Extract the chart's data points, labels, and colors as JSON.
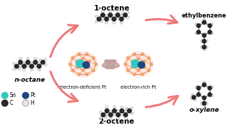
{
  "background_color": "#ffffff",
  "labels": {
    "n_octane": "n-octane",
    "octene1": "1-octene",
    "octene2": "2-octene",
    "ethylbenzene": "ethylbenzene",
    "o_xylene": "o-xylene",
    "electron_deficient": "electron-deficient Pt",
    "electron_rich": "electron-rich Pt"
  },
  "legend": {
    "Sn_color": "#30c8c0",
    "Pt_color": "#204880",
    "C_color": "#282828",
    "H_color": "#e8e8e8",
    "H_edge": "#909090"
  },
  "arrow_color": "#f07878",
  "handshake_color": "#c4a0a0",
  "zeolite_edge": "#e06040",
  "zeolite_node": "#f0a060",
  "zeolite_bg": "#fce8e0"
}
